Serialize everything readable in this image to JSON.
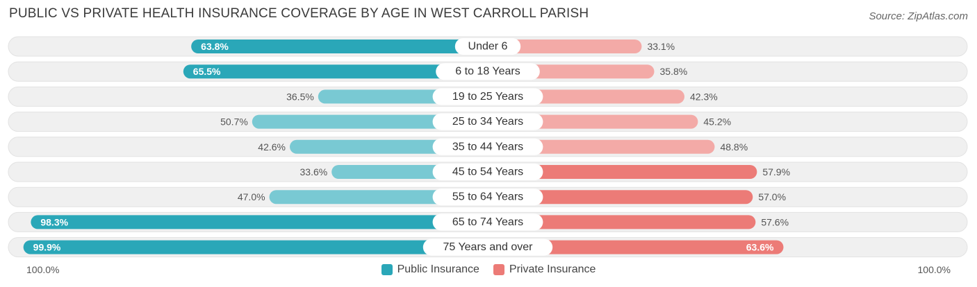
{
  "header": {
    "title": "PUBLIC VS PRIVATE HEALTH INSURANCE COVERAGE BY AGE IN WEST CARROLL PARISH",
    "source": "Source: ZipAtlas.com"
  },
  "axis": {
    "left_label": "100.0%",
    "right_label": "100.0%"
  },
  "legend": {
    "public_label": "Public Insurance",
    "private_label": "Private Insurance"
  },
  "colors": {
    "public_dark": "#2aa7b8",
    "public_light": "#79c9d3",
    "private_dark": "#ec7b77",
    "private_light": "#f3aaa7",
    "track": "#f0f0f0"
  },
  "chart_data": {
    "type": "bar",
    "orientation": "horizontal-diverging",
    "title": "PUBLIC VS PRIVATE HEALTH INSURANCE COVERAGE BY AGE IN WEST CARROLL PARISH",
    "categories": [
      "Under 6",
      "6 to 18 Years",
      "19 to 25 Years",
      "25 to 34 Years",
      "35 to 44 Years",
      "45 to 54 Years",
      "55 to 64 Years",
      "65 to 74 Years",
      "75 Years and over"
    ],
    "series": [
      {
        "name": "Public Insurance",
        "values": [
          63.8,
          65.5,
          36.5,
          50.7,
          42.6,
          33.6,
          47.0,
          98.3,
          99.9
        ],
        "labels": [
          "63.8%",
          "65.5%",
          "36.5%",
          "50.7%",
          "42.6%",
          "33.6%",
          "47.0%",
          "98.3%",
          "99.9%"
        ]
      },
      {
        "name": "Private Insurance",
        "values": [
          33.1,
          35.8,
          42.3,
          45.2,
          48.8,
          57.9,
          57.0,
          57.6,
          63.6
        ],
        "labels": [
          "33.1%",
          "35.8%",
          "42.3%",
          "45.2%",
          "48.8%",
          "57.9%",
          "57.0%",
          "57.6%",
          "63.6%"
        ]
      }
    ],
    "xlim": [
      -100,
      100
    ],
    "legend_position": "bottom-center"
  }
}
